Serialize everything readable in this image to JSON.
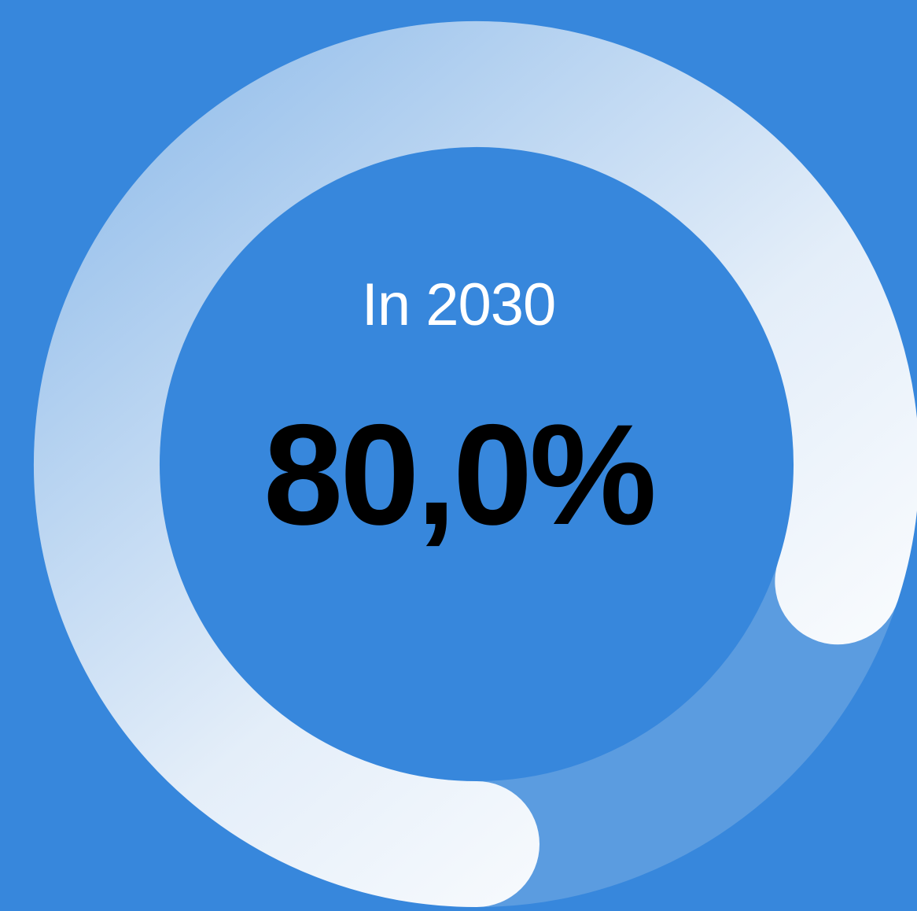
{
  "chart_data": {
    "type": "gauge",
    "value": 80.0,
    "max": 100,
    "label": "In 2030",
    "value_text": "80,0%",
    "colors": {
      "background": "#3787dc",
      "track": "#5b9ce0",
      "fill_start": "#9cc3ec",
      "fill_end": "#ffffff",
      "label": "#ffffff",
      "value": "#000000"
    }
  }
}
